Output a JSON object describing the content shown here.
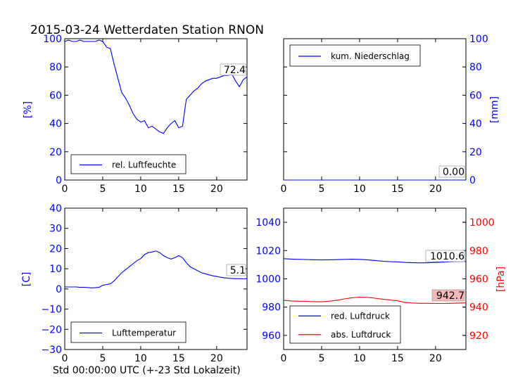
{
  "title": "2015-03-24 Wetterdaten Station RNON",
  "xlabel": "Std 00:00:00 UTC (+-23 Std Lokalzeit)",
  "colors": {
    "primary": "#0000ff",
    "secondary": "#ff0000",
    "axis": "#000000"
  },
  "chart_data": [
    {
      "type": "line",
      "panel": "top-left",
      "title": "",
      "xlabel": "",
      "ylabel": "[%]",
      "xlim": [
        0,
        24
      ],
      "ylim": [
        0,
        100
      ],
      "xticks": [
        "0",
        "5",
        "10",
        "15",
        "20"
      ],
      "yticks": [
        "0",
        "20",
        "40",
        "60",
        "80",
        "100"
      ],
      "legend": {
        "placement": "lower-left"
      },
      "series": [
        {
          "name": "rel. Luftfeuchte",
          "color": "#0000ff",
          "x": [
            0,
            0.5,
            1,
            1.5,
            2,
            2.5,
            3,
            3.5,
            4,
            4.5,
            5,
            5.5,
            6,
            6.5,
            7,
            7.5,
            8,
            8.5,
            9,
            9.5,
            10,
            10.5,
            11,
            11.5,
            12,
            12.5,
            13,
            13.5,
            14,
            14.5,
            15,
            15.5,
            16,
            16.5,
            17,
            17.5,
            18,
            18.5,
            19,
            19.5,
            20,
            20.5,
            21,
            21.5,
            22,
            22.5,
            23,
            23.5,
            24
          ],
          "y": [
            98,
            99,
            98,
            98,
            99,
            98,
            98,
            98,
            98,
            99,
            98,
            94,
            93,
            82,
            72,
            62,
            58,
            53,
            47,
            43,
            41,
            42,
            37,
            38,
            36,
            34,
            33,
            37,
            40,
            42,
            37,
            38,
            57,
            60,
            63,
            65,
            68,
            70,
            71,
            72,
            72,
            73,
            74,
            74,
            75,
            70,
            66,
            71,
            73
          ]
        }
      ],
      "annotation": "72.4"
    },
    {
      "type": "line",
      "panel": "top-right",
      "title": "",
      "xlabel": "",
      "ylabel": "[mm]",
      "xlim": [
        0,
        24
      ],
      "ylim": [
        0,
        100
      ],
      "xticks": [
        "0",
        "5",
        "10",
        "15",
        "20"
      ],
      "yticks": [
        "0",
        "20",
        "40",
        "60",
        "80",
        "100"
      ],
      "legend": {
        "placement": "upper-left"
      },
      "series": [
        {
          "name": "kum. Niederschlag",
          "color": "#0000ff",
          "x": [
            0,
            24
          ],
          "y": [
            0,
            0
          ]
        }
      ],
      "annotation": "0.00"
    },
    {
      "type": "line",
      "panel": "bottom-left",
      "title": "",
      "xlabel": "",
      "ylabel": "[C]",
      "xlim": [
        0,
        24
      ],
      "ylim": [
        -30,
        40
      ],
      "xticks": [
        "0",
        "5",
        "10",
        "15",
        "20"
      ],
      "yticks": [
        "−30",
        "−20",
        "−10",
        "0",
        "10",
        "20",
        "30",
        "40"
      ],
      "legend": {
        "placement": "lower-left"
      },
      "series": [
        {
          "name": "Lufttemperatur",
          "color": "#0000ff",
          "x": [
            0,
            0.5,
            1,
            1.5,
            2,
            2.5,
            3,
            3.5,
            4,
            4.5,
            5,
            5.5,
            6,
            6.5,
            7,
            7.5,
            8,
            8.5,
            9,
            9.5,
            10,
            10.5,
            11,
            11.5,
            12,
            12.5,
            13,
            13.5,
            14,
            14.5,
            15,
            15.5,
            16,
            16.5,
            17,
            17.5,
            18,
            18.5,
            19,
            19.5,
            20,
            20.5,
            21,
            21.5,
            22,
            22.5,
            23,
            23.5,
            24
          ],
          "y": [
            1,
            1,
            1,
            1,
            0.8,
            0.8,
            0.7,
            0.5,
            0.6,
            0.8,
            1.8,
            2.2,
            2.5,
            4,
            6,
            8,
            9.5,
            11,
            12.5,
            14,
            15,
            17,
            18,
            18.3,
            18.8,
            18,
            16.5,
            15.5,
            14.8,
            15.5,
            16.5,
            15.5,
            13,
            11,
            10,
            9,
            8,
            7.5,
            7,
            6.5,
            6.2,
            5.8,
            5.5,
            5.3,
            5.2,
            5.1,
            5.1,
            5,
            5.1
          ]
        }
      ],
      "annotation": "5.1"
    },
    {
      "type": "line",
      "panel": "bottom-right",
      "title": "",
      "xlabel": "",
      "ylabel": "",
      "ylabel_right": "[hPa]",
      "xlim": [
        0,
        24
      ],
      "ylim": [
        950,
        1050
      ],
      "ylim_right": [
        910,
        1010
      ],
      "xticks": [
        "0",
        "5",
        "10",
        "15",
        "20"
      ],
      "yticks": [
        "960",
        "980",
        "1000",
        "1020",
        "1040"
      ],
      "yticks_right": [
        "920",
        "940",
        "960",
        "980",
        "1000"
      ],
      "legend": {
        "placement": "lower-left"
      },
      "series": [
        {
          "name": "red. Luftdruck",
          "color": "#0000ff",
          "axis": "left",
          "x": [
            0,
            1,
            2,
            3,
            4,
            5,
            6,
            7,
            8,
            9,
            10,
            11,
            12,
            13,
            14,
            15,
            16,
            17,
            18,
            19,
            20,
            21,
            22,
            23,
            24
          ],
          "y": [
            1014.3,
            1014,
            1013.8,
            1013.7,
            1013.5,
            1013.4,
            1013.5,
            1013.6,
            1013.8,
            1013.9,
            1013.8,
            1013.5,
            1013,
            1012.5,
            1012.2,
            1012,
            1011.6,
            1011.4,
            1011.3,
            1011.4,
            1011.6,
            1011.8,
            1012.1,
            1012.2,
            1012.3
          ]
        },
        {
          "name": "abs. Luftdruck",
          "color": "#ff0000",
          "axis": "right",
          "x": [
            0,
            1,
            2,
            3,
            4,
            5,
            6,
            7,
            8,
            9,
            10,
            11,
            12,
            13,
            14,
            15,
            16,
            17,
            18,
            19,
            20,
            21,
            22,
            23,
            24
          ],
          "y": [
            944.8,
            944.4,
            944.2,
            944.1,
            943.8,
            943.8,
            944.2,
            944.8,
            945.8,
            946.6,
            947,
            946.9,
            946.3,
            945.6,
            945,
            944.5,
            943.3,
            942.9,
            942.7,
            942.7,
            942.6,
            942.6,
            942.7,
            942.9,
            943
          ]
        }
      ],
      "annotations": [
        "1010.6",
        "942.7"
      ]
    }
  ]
}
